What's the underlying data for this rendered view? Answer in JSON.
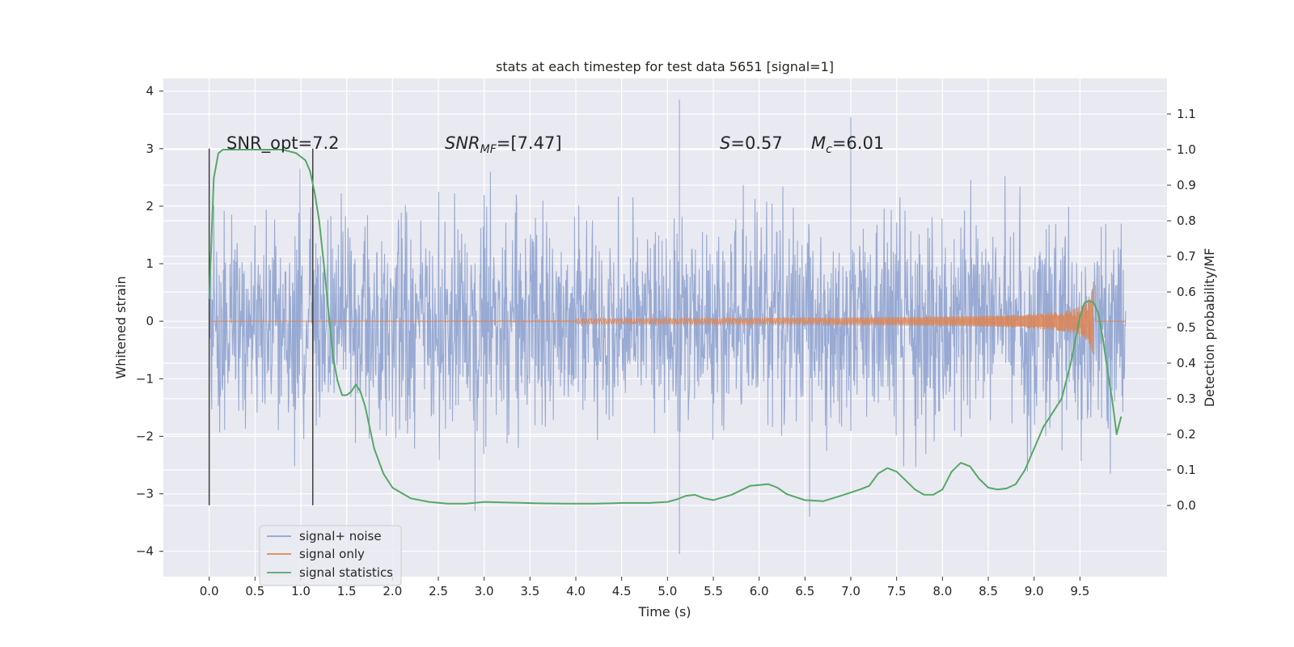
{
  "colors": {
    "plot_background": "#e9e9f1",
    "grid": "#ffffff",
    "noise": "#8fa3cf",
    "signal": "#dd8452",
    "statistics": "#55a868",
    "marker": "#3f3f3f",
    "text": "#262626"
  },
  "chart_data": {
    "type": "line",
    "title": "stats at each timestep for test data 5651 [signal=1]",
    "xlabel": "Time (s)",
    "ylabel": "Whitened strain",
    "y2label": "Detection probability/MF",
    "xlim": [
      -0.5,
      10.45
    ],
    "ylim": [
      -4.44,
      4.22
    ],
    "y2lim": [
      -0.2,
      1.2
    ],
    "xticks": [
      "0.0",
      "0.5",
      "1.0",
      "1.5",
      "2.0",
      "2.5",
      "3.0",
      "3.5",
      "4.0",
      "4.5",
      "5.0",
      "5.5",
      "6.0",
      "6.5",
      "7.0",
      "7.5",
      "8.0",
      "8.5",
      "9.0",
      "9.5"
    ],
    "yticks": [
      "4",
      "3",
      "2",
      "1",
      "0",
      "−1",
      "−2",
      "−3",
      "−4"
    ],
    "y2ticks": [
      "1.1",
      "1.0",
      "0.9",
      "0.8",
      "0.7",
      "0.6",
      "0.5",
      "0.4",
      "0.3",
      "0.2",
      "0.1",
      "0.0"
    ],
    "grid": true,
    "legend_position": "lower-left",
    "annotations": {
      "snr_opt": "SNR_opt=7.2",
      "snr_mf_main": "SNR",
      "snr_mf_sub": "MF",
      "snr_mf_value": "=[7.47]",
      "s_var": "S",
      "s_value": "=0.57",
      "mc_var": "M",
      "mc_sub": "c",
      "mc_value": "=6.01"
    },
    "vertical_lines": [
      0.0,
      1.13
    ],
    "vertical_line_range": [
      -3.2,
      3.0
    ],
    "series": [
      {
        "name": "signal+ noise",
        "kind": "noise_band",
        "x_range": [
          0.0,
          10.0
        ],
        "approx_envelope": [
          -2.5,
          2.5
        ],
        "peak_outliers": [
          {
            "x": 5.13,
            "y": 3.85
          },
          {
            "x": 5.13,
            "y": -4.05
          },
          {
            "x": 2.9,
            "y": -3.3
          },
          {
            "x": 6.55,
            "y": -3.4
          },
          {
            "x": 7.0,
            "y": 3.55
          }
        ]
      },
      {
        "name": "signal only",
        "kind": "chirp",
        "x_range": [
          0.0,
          9.67
        ],
        "amplitude_start": 0.0,
        "amplitude_end": 0.75,
        "merger_time": 9.65
      },
      {
        "name": "signal statistics",
        "axis": "right",
        "x": [
          0.0,
          0.05,
          0.1,
          0.15,
          0.25,
          0.4,
          0.6,
          0.8,
          0.95,
          1.05,
          1.1,
          1.15,
          1.2,
          1.25,
          1.3,
          1.35,
          1.4,
          1.45,
          1.5,
          1.55,
          1.6,
          1.65,
          1.7,
          1.75,
          1.8,
          1.9,
          2.0,
          2.2,
          2.4,
          2.6,
          2.8,
          3.0,
          3.3,
          3.6,
          3.9,
          4.2,
          4.5,
          4.8,
          5.0,
          5.1,
          5.2,
          5.3,
          5.4,
          5.5,
          5.7,
          5.9,
          6.1,
          6.2,
          6.3,
          6.5,
          6.7,
          6.9,
          7.1,
          7.2,
          7.3,
          7.4,
          7.5,
          7.6,
          7.7,
          7.8,
          7.9,
          8.0,
          8.1,
          8.2,
          8.3,
          8.4,
          8.5,
          8.6,
          8.7,
          8.8,
          8.9,
          9.0,
          9.1,
          9.2,
          9.3,
          9.4,
          9.5,
          9.55,
          9.6,
          9.65,
          9.7,
          9.75,
          9.8,
          9.85,
          9.9,
          9.95
        ],
        "y": [
          0.58,
          0.92,
          0.99,
          1.0,
          1.0,
          1.0,
          1.0,
          1.0,
          0.99,
          0.97,
          0.94,
          0.88,
          0.8,
          0.68,
          0.55,
          0.42,
          0.35,
          0.31,
          0.31,
          0.32,
          0.34,
          0.32,
          0.28,
          0.22,
          0.16,
          0.09,
          0.05,
          0.02,
          0.01,
          0.005,
          0.005,
          0.01,
          0.008,
          0.006,
          0.005,
          0.005,
          0.007,
          0.007,
          0.01,
          0.017,
          0.027,
          0.03,
          0.02,
          0.015,
          0.03,
          0.055,
          0.06,
          0.05,
          0.032,
          0.015,
          0.012,
          0.028,
          0.045,
          0.055,
          0.09,
          0.105,
          0.095,
          0.07,
          0.045,
          0.03,
          0.03,
          0.045,
          0.095,
          0.12,
          0.11,
          0.075,
          0.05,
          0.045,
          0.048,
          0.06,
          0.1,
          0.16,
          0.22,
          0.26,
          0.3,
          0.4,
          0.53,
          0.57,
          0.575,
          0.57,
          0.54,
          0.47,
          0.38,
          0.3,
          0.2,
          0.25
        ]
      }
    ]
  }
}
